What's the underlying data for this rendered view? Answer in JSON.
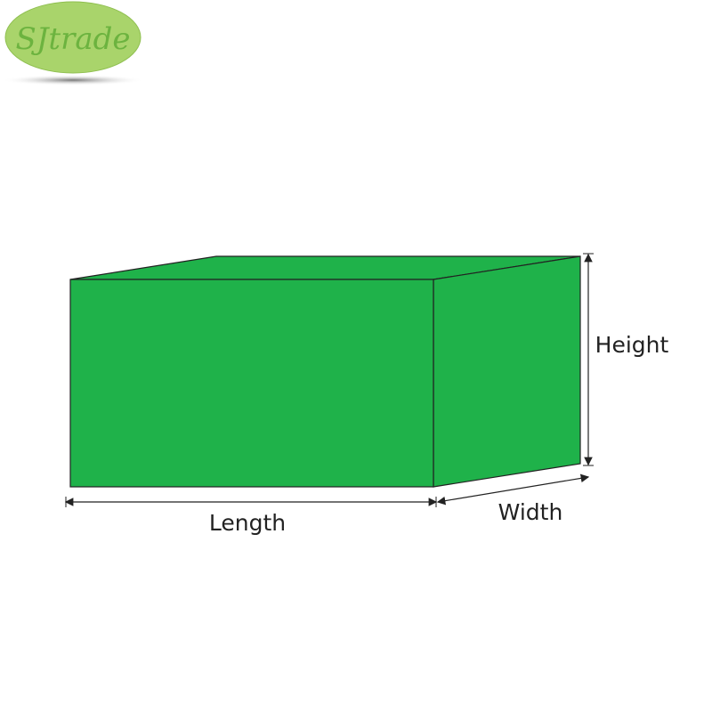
{
  "logo": {
    "text": "SJtrade",
    "color": "#a9d46b"
  },
  "box": {
    "color": "#1fb24a"
  },
  "labels": {
    "length": "Length",
    "width": "Width",
    "height": "Height"
  }
}
